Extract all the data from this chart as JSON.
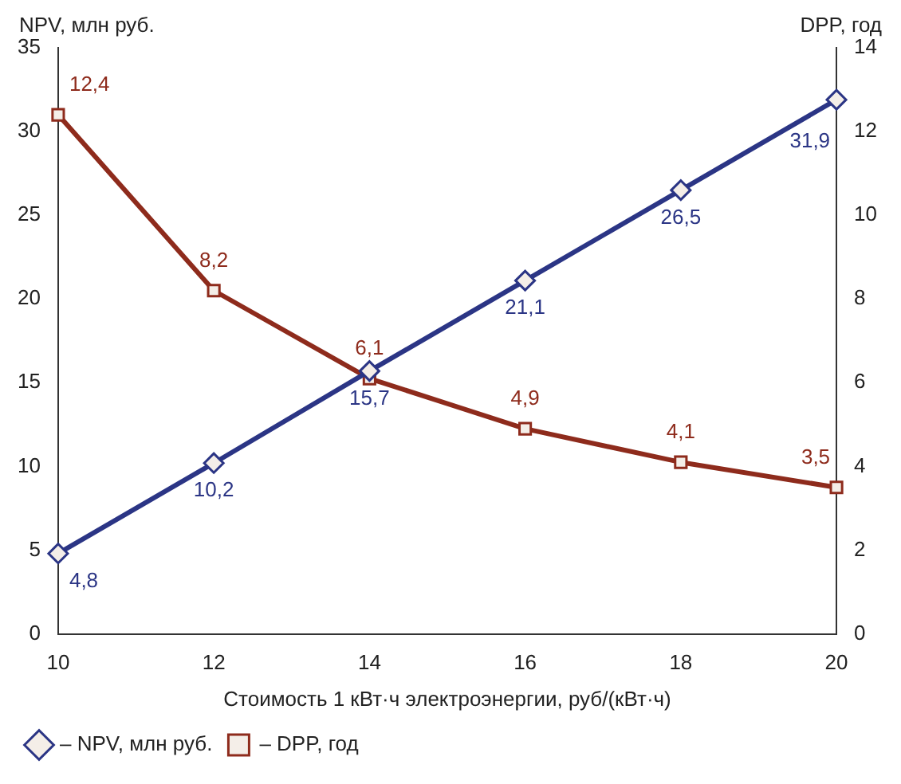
{
  "chart_data": {
    "type": "line",
    "xlabel": "Стоимость 1 кВт·ч электроэнергии, руб/(кВт·ч)",
    "ylabel": "NPV, млн руб.",
    "y2label": "DPP, год",
    "categories": [
      "10",
      "12",
      "14",
      "16",
      "18",
      "20"
    ],
    "series": [
      {
        "name": "– NPV, млн руб.",
        "color": "#2b3585",
        "values": [
          4.8,
          10.2,
          15.7,
          21.1,
          26.5,
          31.9
        ],
        "value_labels": [
          "4,8",
          "10,2",
          "15,7",
          "21,1",
          "26,5",
          "31,9"
        ],
        "marker": "diamond"
      },
      {
        "name": "– DPP, год",
        "color": "#8e2b1c",
        "values": [
          12.4,
          8.2,
          6.1,
          4.9,
          4.1,
          3.5
        ],
        "value_labels": [
          "12,4",
          "8,2",
          "6,1",
          "4,9",
          "4,1",
          "3,5"
        ],
        "axis": "y2",
        "marker": "square"
      }
    ],
    "ylim": [
      0,
      35
    ],
    "yticks": [
      0,
      5,
      10,
      15,
      20,
      25,
      30,
      35
    ],
    "y2lim": [
      0,
      14
    ],
    "y2ticks": [
      0,
      2,
      4,
      6,
      8,
      10,
      12,
      14
    ],
    "grid": false,
    "legend": "bottom left"
  }
}
